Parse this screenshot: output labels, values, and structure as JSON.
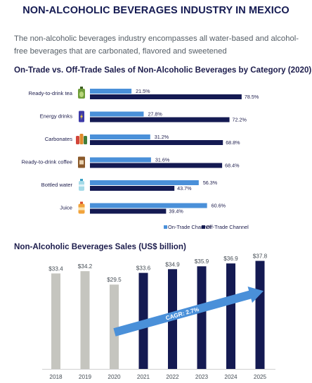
{
  "page_title": "NON-ALCOHOLIC BEVERAGES INDUSTRY IN MEXICO",
  "intro": "The non-alcoholic beverages industry encompasses all water-based and alcohol-free beverages that are carbonated, flavored and sweetened",
  "colors": {
    "on_trade": "#4a90d9",
    "off_trade": "#141a52",
    "historic_bar": "#c5c5bf",
    "arrow": "#4a90d9"
  },
  "chart_data": [
    {
      "type": "bar",
      "orientation": "horizontal",
      "title": "On-Trade vs. Off-Trade Sales of Non-Alcoholic Beverages by Category (2020)",
      "categories": [
        "Ready-to-drink tea",
        "Energy drinks",
        "Carbonates",
        "Ready-to-drink coffee",
        "Bottled water",
        "Juice"
      ],
      "category_icons": [
        "tea-bottle-icon",
        "energy-can-icon",
        "soda-bottles-icon",
        "coffee-pack-icon",
        "water-bottle-icon",
        "juice-bottle-icon"
      ],
      "value_unit": "%",
      "xlim": [
        0,
        100
      ],
      "series": [
        {
          "name": "On-Trade Channel",
          "values": [
            21.5,
            27.8,
            31.2,
            31.6,
            56.3,
            60.6
          ]
        },
        {
          "name": "Off-Trade Channel",
          "values": [
            78.5,
            72.2,
            68.8,
            68.4,
            43.7,
            39.4
          ]
        }
      ],
      "legend_position": "bottom-right",
      "grid": false
    },
    {
      "type": "bar",
      "title": "Non-Alcoholic Beverages Sales (US$ billion)",
      "categories": [
        "2018",
        "2019",
        "2020",
        "2021",
        "2022",
        "2023",
        "2024",
        "2025"
      ],
      "values": [
        33.4,
        34.2,
        29.5,
        33.6,
        34.9,
        35.9,
        36.9,
        37.8
      ],
      "value_labels": [
        "$33.4",
        "$34.2",
        "$29.5",
        "$33.6",
        "$34.9",
        "$35.9",
        "$36.9",
        "$37.8"
      ],
      "bar_colors": [
        "#c5c5bf",
        "#c5c5bf",
        "#c5c5bf",
        "#141a52",
        "#141a52",
        "#141a52",
        "#141a52",
        "#141a52"
      ],
      "ylim": [
        0,
        40
      ],
      "annotation": "CAGR: 2.7%",
      "grid": false
    }
  ]
}
